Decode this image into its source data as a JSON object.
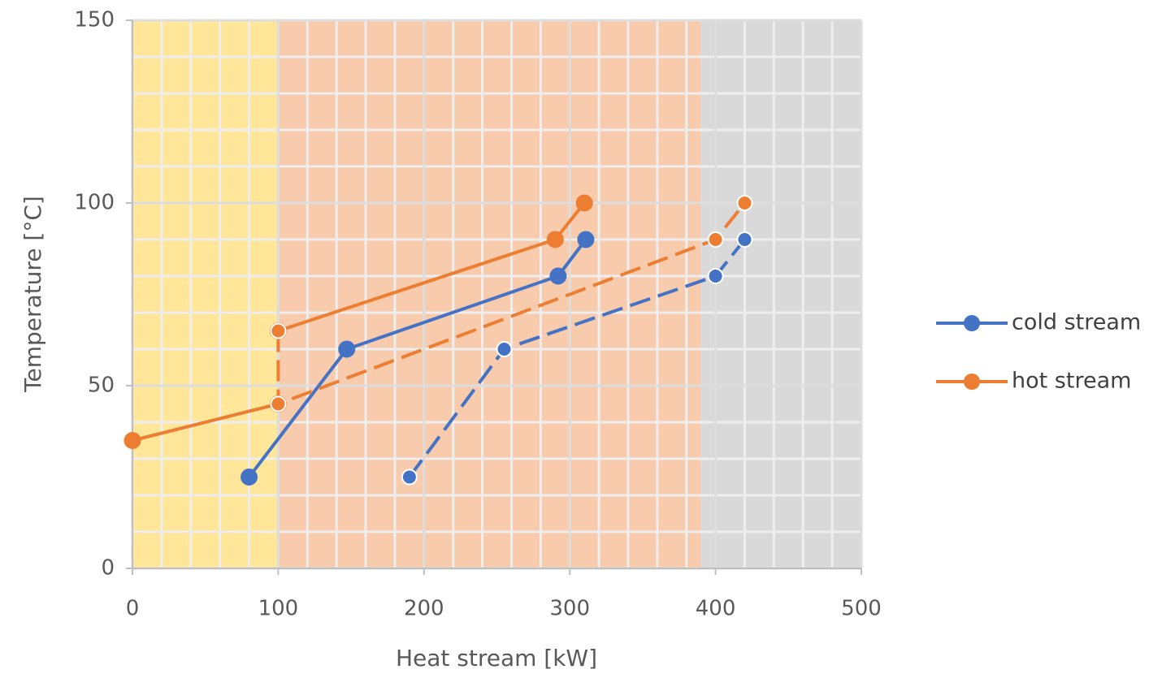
{
  "chart_data": {
    "type": "line",
    "x_label": "Heat stream [kW]",
    "y_label": "Temperature [°C]",
    "xlim": [
      0,
      500
    ],
    "ylim": [
      0,
      150
    ],
    "xticks": [
      0,
      100,
      200,
      300,
      400,
      500
    ],
    "yticks": [
      0,
      50,
      100,
      150
    ],
    "grid": true,
    "legend": "right",
    "regions": [
      {
        "xlim": [
          0,
          100
        ],
        "color": "#ffe699"
      },
      {
        "xlim": [
          100,
          390
        ],
        "color": "#f8cbad"
      },
      {
        "xlim": [
          390,
          500
        ],
        "color": "#d9d9d9"
      }
    ],
    "series": [
      {
        "name": "cold stream",
        "color": "#4472c4",
        "dashed": false,
        "x": [
          80,
          147,
          292,
          311
        ],
        "values": [
          25,
          60,
          80,
          90
        ]
      },
      {
        "name": "hot stream",
        "color": "#ed7d31",
        "dashed": false,
        "x": [
          0,
          100,
          100,
          100,
          290,
          310
        ],
        "values": [
          35,
          45,
          null,
          65,
          90,
          100
        ]
      },
      {
        "color": "#4472c4",
        "dashed": true,
        "x": [
          190,
          255,
          400,
          420
        ],
        "values": [
          25,
          60,
          80,
          90
        ]
      },
      {
        "color": "#ed7d31",
        "dashed": true,
        "x": [
          100,
          100,
          400,
          420
        ],
        "values": [
          65,
          45,
          90,
          100
        ]
      }
    ]
  }
}
